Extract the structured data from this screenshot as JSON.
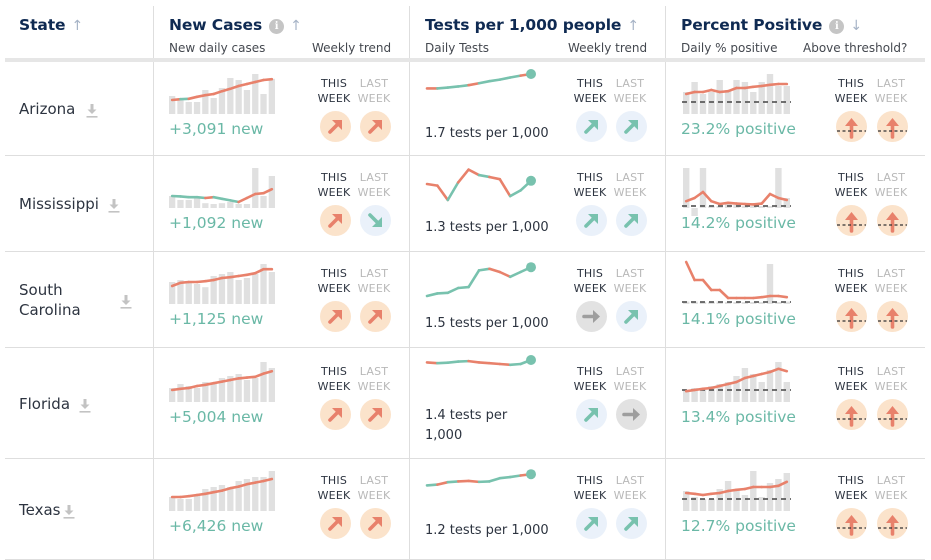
{
  "colors": {
    "orange": "#e8816b",
    "teal": "#78c2ae",
    "gray_bar": "#e0e0e0",
    "gray_arrow": "#9e9e9e",
    "navy": "#0f2a52",
    "green_text": "#6ab8a6"
  },
  "header": {
    "state": {
      "title": "State",
      "sort_icon": "arrow-up-icon"
    },
    "new_cases": {
      "title": "New Cases",
      "info_icon": "info-icon",
      "sort_icon": "arrow-up-icon",
      "sub_left": "New daily cases",
      "sub_right": "Weekly trend"
    },
    "tests": {
      "title": "Tests per 1,000 people",
      "sort_icon": "arrow-up-icon",
      "sub_left": "Daily Tests",
      "sub_right": "Weekly trend"
    },
    "percent_positive": {
      "title": "Percent Positive",
      "info_icon": "info-icon",
      "sort_icon": "arrow-down-icon",
      "sub_left": "Daily % positive",
      "sub_right": "Above threshold?"
    }
  },
  "week_labels": {
    "this_1": "THIS",
    "this_2": "WEEK",
    "last_1": "LAST",
    "last_2": "WEEK"
  },
  "rows": [
    {
      "state": "Arizona",
      "new_cases": {
        "text": "+3,091 new",
        "bars": [
          0.45,
          0.38,
          0.3,
          0.3,
          0.6,
          0.4,
          0.65,
          0.9,
          0.85,
          0.6,
          1.0,
          0.5,
          0.88
        ],
        "line": [
          0.3,
          0.32,
          0.33,
          0.38,
          0.42,
          0.45,
          0.52,
          0.58,
          0.65,
          0.7,
          0.75,
          0.8,
          0.82
        ],
        "line_colors": [
          "o",
          "t",
          "o",
          "o",
          "o",
          "o",
          "o",
          "o",
          "o",
          "o",
          "o",
          "o"
        ],
        "this_week": "up-orange",
        "last_week": "up-orange"
      },
      "tests": {
        "text": "1.7 tests per 1,000",
        "line": [
          0.1,
          0.1,
          0.15,
          0.22,
          0.3,
          0.42,
          0.55,
          0.65,
          0.78,
          0.9,
          1.0
        ],
        "line_colors": [
          "o",
          "t",
          "t",
          "t",
          "o",
          "t",
          "t",
          "t",
          "t",
          "o"
        ],
        "this_week": "up-green",
        "last_week": "up-green"
      },
      "percent_positive": {
        "text": "23.2% positive",
        "bars": [
          0.55,
          0.8,
          0.5,
          0.55,
          0.85,
          0.6,
          0.85,
          0.8,
          0.55,
          0.8,
          1.0,
          0.7,
          0.7
        ],
        "line": [
          0.45,
          0.5,
          0.5,
          0.55,
          0.5,
          0.52,
          0.6,
          0.6,
          0.63,
          0.65,
          0.68,
          0.7,
          0.7
        ],
        "threshold": 0.25,
        "this_week": "above",
        "last_week": "above"
      }
    },
    {
      "state": "Mississippi",
      "new_cases": {
        "text": "+1,092 new",
        "bars": [
          0.3,
          0.2,
          0.2,
          0.25,
          0.12,
          0.1,
          0.12,
          0.15,
          0.1,
          0.1,
          1.0,
          0.3,
          0.8
        ],
        "line": [
          0.25,
          0.24,
          0.22,
          0.22,
          0.2,
          0.22,
          0.18,
          0.14,
          0.1,
          0.2,
          0.3,
          0.32,
          0.42
        ],
        "line_colors": [
          "t",
          "t",
          "t",
          "t",
          "o",
          "t",
          "t",
          "t",
          "o",
          "o",
          "o",
          "o"
        ],
        "this_week": "up-orange",
        "last_week": "down-green"
      },
      "tests": {
        "text": "1.3 tests per 1,000",
        "line": [
          0.5,
          0.45,
          0.0,
          0.55,
          0.95,
          0.78,
          0.72,
          0.65,
          0.12,
          0.3,
          0.6
        ],
        "line_colors": [
          "o",
          "o",
          "t",
          "o",
          "o",
          "t",
          "o",
          "o",
          "t",
          "t"
        ],
        "this_week": "up-green",
        "last_week": "up-green"
      },
      "percent_positive": {
        "text": "14.2% positive",
        "bars": [
          1.0,
          -0.2,
          1.0,
          0.05,
          0.05,
          0.12,
          0.08,
          0.05,
          0.05,
          0.05,
          0.05,
          1.0,
          0.25
        ],
        "line": [
          0.12,
          0.2,
          0.35,
          0.12,
          0.05,
          0.08,
          0.06,
          0.05,
          0.04,
          0.06,
          0.3,
          0.2,
          0.15
        ],
        "threshold": 0.0,
        "this_week": "above",
        "last_week": "above"
      }
    },
    {
      "state": "South Carolina",
      "new_cases": {
        "text": "+1,125 new",
        "bars": [
          0.55,
          0.6,
          0.55,
          0.5,
          0.42,
          0.7,
          0.75,
          0.8,
          0.6,
          0.65,
          0.75,
          1.0,
          0.8
        ],
        "line": [
          0.4,
          0.48,
          0.5,
          0.5,
          0.52,
          0.55,
          0.6,
          0.62,
          0.65,
          0.68,
          0.72,
          0.82,
          0.82
        ],
        "line_colors": [
          "o",
          "o",
          "o",
          "o",
          "o",
          "o",
          "o",
          "o",
          "o",
          "o",
          "o",
          "o"
        ],
        "this_week": "up-orange",
        "last_week": "up-orange"
      },
      "tests": {
        "text": "1.5 tests per 1,000",
        "line": [
          0.0,
          0.08,
          0.1,
          0.25,
          0.28,
          0.8,
          0.85,
          0.75,
          0.6,
          0.75,
          0.9
        ],
        "line_colors": [
          "t",
          "t",
          "t",
          "t",
          "t",
          "t",
          "o",
          "o",
          "t",
          "t"
        ],
        "this_week": "flat-gray",
        "last_week": "up-green"
      },
      "percent_positive": {
        "text": "14.1% positive",
        "bars": [
          0.06,
          0.06,
          0.05,
          0.05,
          0.06,
          0.05,
          0.05,
          0.05,
          0.05,
          0.05,
          1.0,
          0.05,
          0.06
        ],
        "line": [
          1.0,
          0.55,
          0.55,
          0.3,
          0.3,
          0.1,
          0.1,
          0.1,
          0.1,
          0.12,
          0.15,
          0.15,
          0.12
        ],
        "threshold": 0.0,
        "this_week": "above",
        "last_week": "above"
      }
    },
    {
      "state": "Florida",
      "new_cases": {
        "text": "+5,004 new",
        "bars": [
          0.35,
          0.45,
          0.4,
          0.35,
          0.5,
          0.45,
          0.6,
          0.65,
          0.7,
          0.55,
          0.6,
          1.0,
          0.85
        ],
        "line": [
          0.25,
          0.28,
          0.3,
          0.35,
          0.38,
          0.42,
          0.46,
          0.5,
          0.54,
          0.56,
          0.58,
          0.66,
          0.72
        ],
        "line_colors": [
          "o",
          "o",
          "o",
          "o",
          "o",
          "o",
          "o",
          "o",
          "o",
          "o",
          "o",
          "o"
        ],
        "this_week": "up-orange",
        "last_week": "up-orange"
      },
      "tests": {
        "text": "1.4 tests per 1,000",
        "line": [
          0.6,
          0.55,
          0.58,
          0.65,
          0.68,
          0.6,
          0.55,
          0.5,
          0.45,
          0.5,
          0.75
        ],
        "line_colors": [
          "o",
          "t",
          "t",
          "t",
          "o",
          "o",
          "o",
          "o",
          "t",
          "t"
        ],
        "this_week": "up-green",
        "last_week": "flat-gray"
      },
      "percent_positive": {
        "text": "13.4% positive",
        "bars": [
          0.3,
          0.35,
          0.3,
          0.4,
          0.45,
          0.5,
          0.65,
          0.85,
          0.7,
          0.5,
          0.8,
          1.0,
          0.5
        ],
        "line": [
          0.22,
          0.25,
          0.28,
          0.3,
          0.35,
          0.4,
          0.45,
          0.55,
          0.6,
          0.65,
          0.7,
          0.78,
          0.72
        ],
        "threshold": 0.25,
        "this_week": "above",
        "last_week": "above"
      }
    },
    {
      "state": "Texas",
      "new_cases": {
        "text": "+6,426 new",
        "bars": [
          0.35,
          0.3,
          0.3,
          0.4,
          0.55,
          0.6,
          0.65,
          0.6,
          0.75,
          0.8,
          0.85,
          0.85,
          1.0
        ],
        "line": [
          0.3,
          0.3,
          0.32,
          0.35,
          0.38,
          0.42,
          0.46,
          0.52,
          0.56,
          0.62,
          0.66,
          0.7,
          0.75
        ],
        "line_colors": [
          "o",
          "o",
          "o",
          "o",
          "o",
          "o",
          "o",
          "o",
          "o",
          "o",
          "o",
          "o"
        ],
        "this_week": "up-orange",
        "last_week": "up-orange"
      },
      "tests": {
        "text": "1.2 tests per 1,000",
        "line": [
          0.1,
          0.15,
          0.3,
          0.35,
          0.38,
          0.32,
          0.35,
          0.55,
          0.62,
          0.72,
          0.8
        ],
        "line_colors": [
          "t",
          "o",
          "t",
          "o",
          "o",
          "t",
          "t",
          "t",
          "t",
          "o"
        ],
        "this_week": "up-green",
        "last_week": "up-green"
      },
      "percent_positive": {
        "text": "12.7% positive",
        "bars": [
          0.5,
          0.35,
          0.3,
          0.3,
          0.55,
          0.75,
          0.55,
          0.4,
          1.0,
          0.35,
          0.7,
          0.8,
          0.95
        ],
        "line": [
          0.4,
          0.38,
          0.35,
          0.38,
          0.4,
          0.45,
          0.48,
          0.5,
          0.55,
          0.55,
          0.55,
          0.58,
          0.68
        ],
        "threshold": 0.25,
        "this_week": "above",
        "last_week": "above"
      }
    }
  ]
}
